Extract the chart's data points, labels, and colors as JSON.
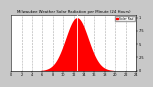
{
  "title": "Milwaukee Weather Solar Radiation per Minute (24 Hours)",
  "bg_color": "#c8c8c8",
  "plot_bg_color": "#ffffff",
  "bar_color": "#ff0000",
  "grid_color": "#aaaaaa",
  "grid_style": "--",
  "axis_color": "#000000",
  "tick_color": "#000000",
  "num_points": 1440,
  "peak_minute": 760,
  "sigma": 130,
  "x_ticks": [
    0,
    120,
    240,
    360,
    480,
    600,
    720,
    840,
    960,
    1080,
    1200,
    1320,
    1440
  ],
  "x_tick_labels": [
    "0",
    "2",
    "4",
    "6",
    "8",
    "10",
    "12",
    "14",
    "16",
    "18",
    "20",
    "22",
    "24"
  ],
  "y_ticks": [
    0,
    0.25,
    0.5,
    0.75,
    1.0
  ],
  "y_tick_labels": [
    "0",
    ".25",
    ".5",
    ".75",
    "1"
  ],
  "ylim": [
    0,
    1.05
  ],
  "xlim": [
    0,
    1440
  ],
  "legend_text": "Solar Rad.",
  "legend_color": "#ff0000",
  "white_line_x": 760
}
